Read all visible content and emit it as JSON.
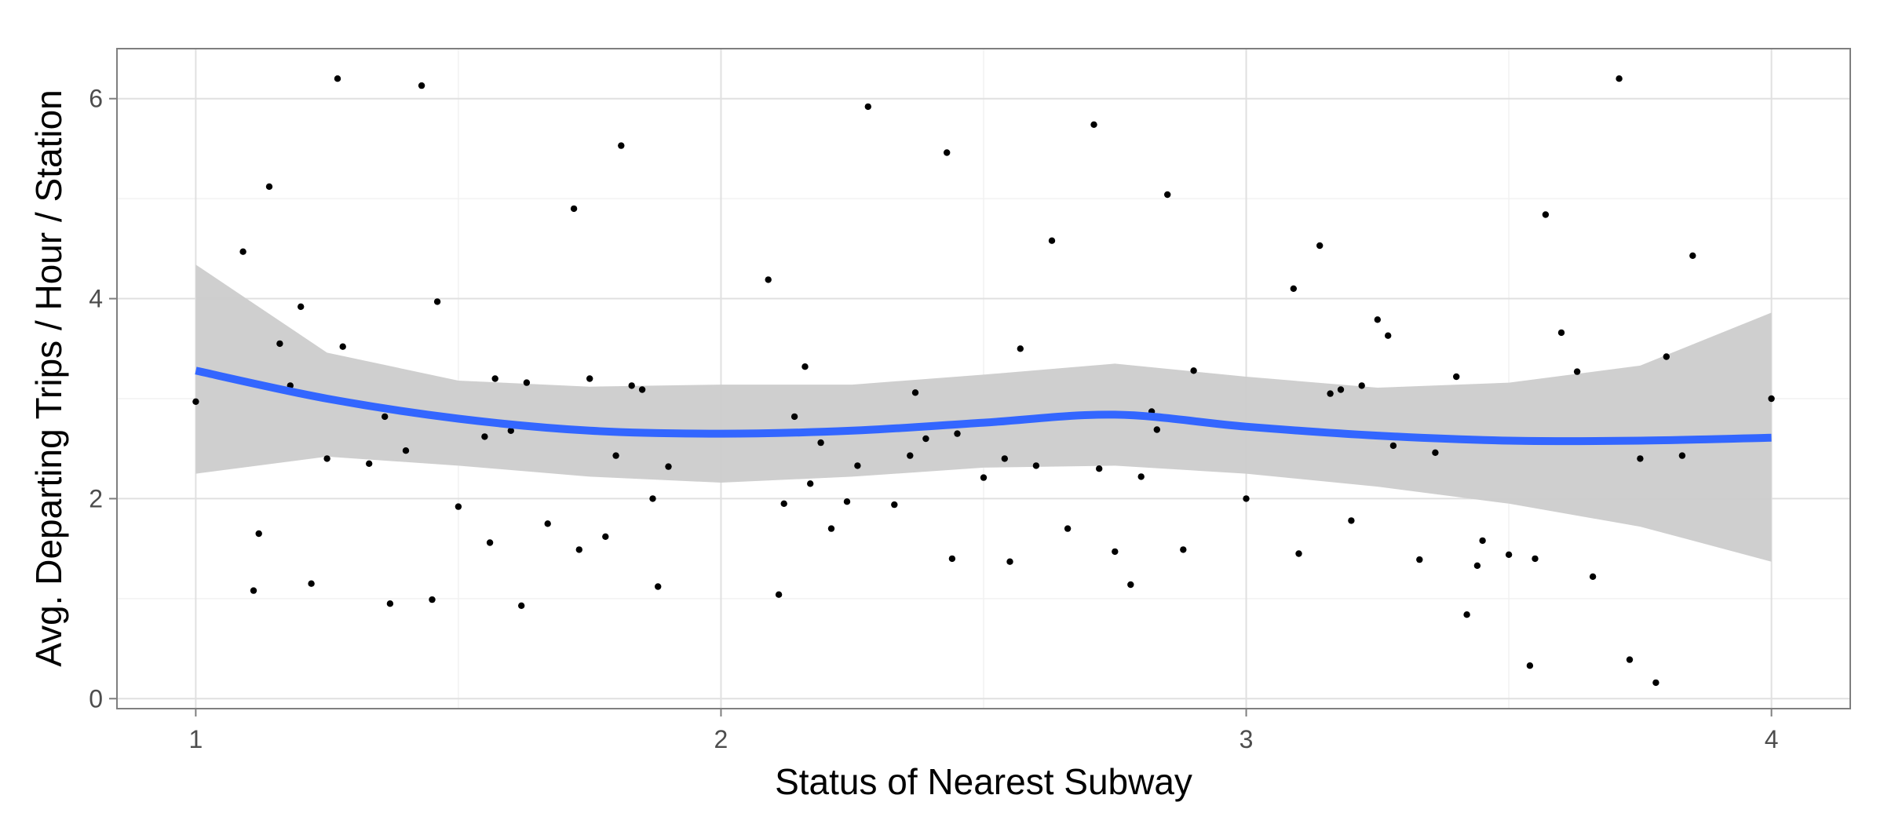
{
  "chart_data": {
    "type": "scatter",
    "xlabel": "Status of Nearest Subway",
    "ylabel": "Avg. Departing Trips / Hour / Station",
    "xlim": [
      0.85,
      4.15
    ],
    "ylim": [
      -0.1,
      6.5
    ],
    "x_ticks": [
      1,
      2,
      3,
      4
    ],
    "y_ticks": [
      0,
      2,
      4,
      6
    ],
    "x_tick_labels": [
      "1",
      "2",
      "3",
      "4"
    ],
    "y_tick_labels": [
      "0",
      "2",
      "4",
      "6"
    ],
    "grid": true,
    "colors": {
      "points": "#000000",
      "smooth_line": "#3366ff",
      "confidence_band": "#cccccc",
      "panel_border": "#7f7f7f",
      "grid_major": "#e0e0e0",
      "grid_minor": "#f2f2f2"
    },
    "points": [
      [
        1.0,
        2.97
      ],
      [
        1.09,
        4.47
      ],
      [
        1.11,
        1.08
      ],
      [
        1.12,
        1.65
      ],
      [
        1.14,
        5.12
      ],
      [
        1.16,
        3.55
      ],
      [
        1.18,
        3.13
      ],
      [
        1.2,
        3.92
      ],
      [
        1.22,
        1.15
      ],
      [
        1.25,
        2.4
      ],
      [
        1.27,
        6.2
      ],
      [
        1.28,
        3.52
      ],
      [
        1.33,
        2.35
      ],
      [
        1.36,
        2.82
      ],
      [
        1.37,
        0.95
      ],
      [
        1.4,
        2.48
      ],
      [
        1.43,
        6.13
      ],
      [
        1.45,
        0.99
      ],
      [
        1.46,
        3.97
      ],
      [
        1.5,
        1.92
      ],
      [
        1.55,
        2.62
      ],
      [
        1.56,
        1.56
      ],
      [
        1.57,
        3.2
      ],
      [
        1.6,
        2.68
      ],
      [
        1.62,
        0.93
      ],
      [
        1.63,
        3.16
      ],
      [
        1.67,
        1.75
      ],
      [
        1.72,
        4.9
      ],
      [
        1.73,
        1.49
      ],
      [
        1.75,
        3.2
      ],
      [
        1.78,
        1.62
      ],
      [
        1.8,
        2.43
      ],
      [
        1.81,
        5.53
      ],
      [
        1.83,
        3.13
      ],
      [
        1.85,
        3.09
      ],
      [
        1.87,
        2.0
      ],
      [
        1.88,
        1.12
      ],
      [
        1.9,
        2.32
      ],
      [
        2.09,
        4.19
      ],
      [
        2.11,
        1.04
      ],
      [
        2.12,
        1.95
      ],
      [
        2.14,
        2.82
      ],
      [
        2.16,
        3.32
      ],
      [
        2.17,
        2.15
      ],
      [
        2.19,
        2.56
      ],
      [
        2.21,
        1.7
      ],
      [
        2.24,
        1.97
      ],
      [
        2.26,
        2.33
      ],
      [
        2.28,
        5.92
      ],
      [
        2.33,
        1.94
      ],
      [
        2.36,
        2.43
      ],
      [
        2.37,
        3.06
      ],
      [
        2.39,
        2.6
      ],
      [
        2.43,
        5.46
      ],
      [
        2.44,
        1.4
      ],
      [
        2.45,
        2.65
      ],
      [
        2.5,
        2.21
      ],
      [
        2.54,
        2.4
      ],
      [
        2.55,
        1.37
      ],
      [
        2.57,
        3.5
      ],
      [
        2.6,
        2.33
      ],
      [
        2.63,
        4.58
      ],
      [
        2.66,
        1.7
      ],
      [
        2.71,
        5.74
      ],
      [
        2.72,
        2.3
      ],
      [
        2.75,
        1.47
      ],
      [
        2.78,
        1.14
      ],
      [
        2.8,
        2.22
      ],
      [
        2.82,
        2.87
      ],
      [
        2.83,
        2.69
      ],
      [
        2.85,
        5.04
      ],
      [
        2.88,
        1.49
      ],
      [
        2.9,
        3.28
      ],
      [
        3.0,
        2.0
      ],
      [
        3.09,
        4.1
      ],
      [
        3.1,
        1.45
      ],
      [
        3.14,
        4.53
      ],
      [
        3.16,
        3.05
      ],
      [
        3.18,
        3.09
      ],
      [
        3.2,
        1.78
      ],
      [
        3.22,
        3.13
      ],
      [
        3.25,
        3.79
      ],
      [
        3.27,
        3.63
      ],
      [
        3.28,
        2.53
      ],
      [
        3.33,
        1.39
      ],
      [
        3.36,
        2.46
      ],
      [
        3.4,
        3.22
      ],
      [
        3.42,
        0.84
      ],
      [
        3.44,
        1.33
      ],
      [
        3.45,
        1.58
      ],
      [
        3.5,
        1.44
      ],
      [
        3.54,
        0.33
      ],
      [
        3.55,
        1.4
      ],
      [
        3.57,
        4.84
      ],
      [
        3.6,
        3.66
      ],
      [
        3.63,
        3.27
      ],
      [
        3.66,
        1.22
      ],
      [
        3.71,
        6.2
      ],
      [
        3.73,
        0.39
      ],
      [
        3.75,
        2.4
      ],
      [
        3.78,
        0.16
      ],
      [
        3.8,
        3.42
      ],
      [
        3.83,
        2.43
      ],
      [
        3.85,
        4.43
      ],
      [
        4.0,
        3.0
      ]
    ],
    "smooth": {
      "x": [
        1.0,
        1.25,
        1.5,
        1.75,
        2.0,
        2.25,
        2.5,
        2.75,
        3.0,
        3.25,
        3.5,
        3.75,
        4.0
      ],
      "y": [
        3.28,
        3.0,
        2.8,
        2.68,
        2.65,
        2.68,
        2.76,
        2.84,
        2.72,
        2.63,
        2.58,
        2.58,
        2.61
      ],
      "lower": [
        2.25,
        2.42,
        2.33,
        2.22,
        2.16,
        2.22,
        2.31,
        2.33,
        2.25,
        2.12,
        1.95,
        1.72,
        1.37
      ],
      "upper": [
        4.34,
        3.46,
        3.18,
        3.12,
        3.14,
        3.14,
        3.24,
        3.35,
        3.22,
        3.11,
        3.16,
        3.33,
        3.86
      ]
    }
  }
}
